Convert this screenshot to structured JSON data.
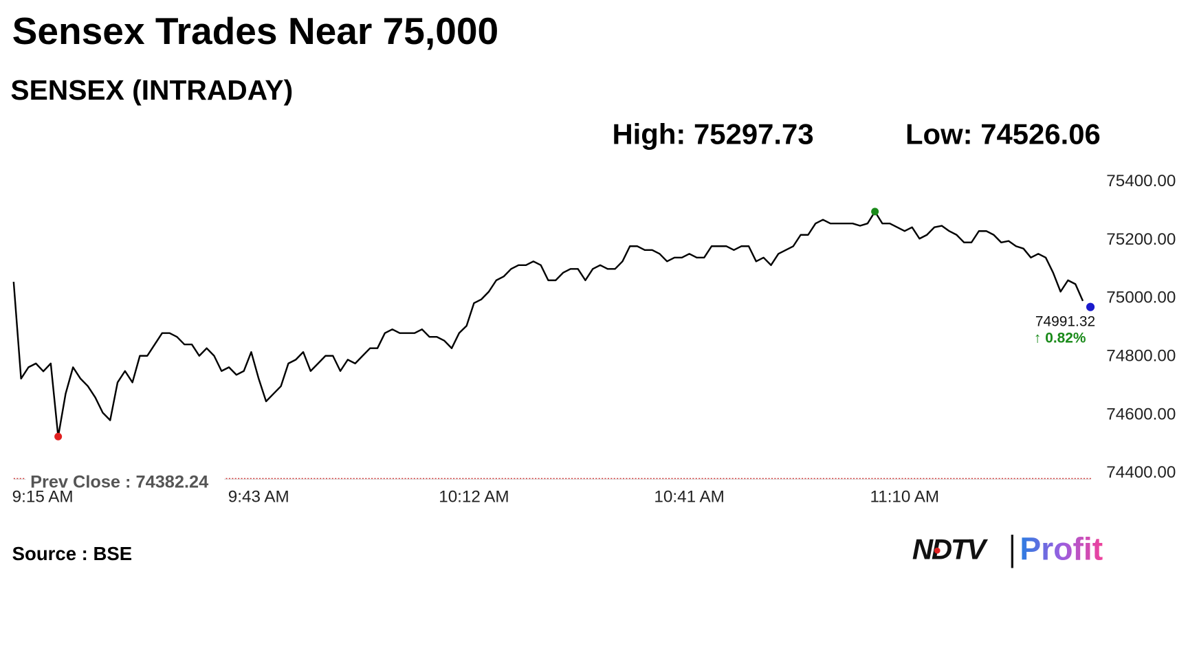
{
  "chart_data": {
    "type": "line",
    "title": "Sensex Trades Near 75,000",
    "subtitle": "SENSEX (INTRADAY)",
    "high_label": "High: 75297.73",
    "low_label": "Low: 74526.06",
    "categories": [
      "9:15 AM",
      null,
      null,
      null,
      null,
      null,
      null,
      null,
      null,
      null,
      null,
      null,
      null,
      null,
      null,
      null,
      null,
      null,
      null,
      null,
      null,
      null,
      null,
      null,
      null,
      null,
      null,
      null,
      null,
      null,
      null,
      null,
      null,
      "9:43 AM",
      null,
      null,
      null,
      null,
      null,
      null,
      null,
      null,
      null,
      null,
      null,
      null,
      null,
      null,
      null,
      null,
      null,
      null,
      null,
      null,
      null,
      null,
      null,
      null,
      null,
      null,
      null,
      null,
      "10:12 AM",
      null,
      null,
      null,
      null,
      null,
      null,
      null,
      null,
      null,
      null,
      null,
      null,
      null,
      null,
      null,
      null,
      null,
      null,
      null,
      null,
      null,
      null,
      null,
      null,
      null,
      null,
      null,
      null,
      "10:41 AM",
      null,
      null,
      null,
      null,
      null,
      null,
      null,
      null,
      null,
      null,
      null,
      null,
      null,
      null,
      null,
      null,
      null,
      null,
      null,
      null,
      null,
      null,
      null,
      null,
      null,
      null,
      null,
      null,
      "11:10 AM",
      null,
      null,
      null,
      null,
      null,
      null,
      null,
      null,
      null,
      null,
      null,
      null,
      null,
      null,
      null,
      null,
      null,
      null,
      null,
      null,
      null,
      null,
      null,
      null
    ],
    "values": [
      75057,
      74725,
      74764,
      74777,
      74750,
      74777,
      74526.06,
      74673,
      74764,
      74725,
      74699,
      74660,
      74608,
      74582,
      74712,
      74751,
      74712,
      74803,
      74803,
      74842,
      74881,
      74881,
      74868,
      74842,
      74842,
      74803,
      74829,
      74803,
      74751,
      74764,
      74738,
      74751,
      74816,
      74725,
      74647,
      74673,
      74699,
      74777,
      74790,
      74816,
      74751,
      74777,
      74803,
      74803,
      74751,
      74790,
      74777,
      74803,
      74829,
      74829,
      74881,
      74894,
      74881,
      74881,
      74881,
      74894,
      74868,
      74868,
      74855,
      74829,
      74881,
      74906,
      74984,
      74997,
      75023,
      75062,
      75075,
      75101,
      75114,
      75114,
      75127,
      75114,
      75062,
      75062,
      75088,
      75101,
      75101,
      75062,
      75101,
      75114,
      75101,
      75101,
      75127,
      75179,
      75179,
      75166,
      75166,
      75153,
      75127,
      75140,
      75140,
      75153,
      75140,
      75140,
      75179,
      75179,
      75179,
      75166,
      75179,
      75179,
      75127,
      75140,
      75114,
      75153,
      75166,
      75179,
      75218,
      75218,
      75257,
      75270,
      75257,
      75257,
      75257,
      75257,
      75249,
      75257,
      75297.73,
      75257,
      75257,
      75244,
      75231,
      75244,
      75205,
      75218,
      75244,
      75249,
      75231,
      75218,
      75192,
      75192,
      75231,
      75231,
      75218,
      75192,
      75197,
      75179,
      75171,
      75140,
      75153,
      75140,
      75088,
      75023,
      75062,
      75049,
      74991.32
    ],
    "color": "#000000",
    "high_color": "#1a8a1a",
    "low_color": "#e02020",
    "last_color": "#1a1acc",
    "last_label": "74991.32",
    "change_label": "↑ 0.82%",
    "change_color": "#1a8a1a",
    "reference_line": {
      "value": 74382.24,
      "label": "Prev Close : 74382.24",
      "color": "#d04040"
    },
    "ylim": [
      74360,
      75440
    ],
    "yticks": [
      {
        "value": 74400,
        "label": "74400.00"
      },
      {
        "value": 74600,
        "label": "74600.00"
      },
      {
        "value": 74800,
        "label": "74800.00"
      },
      {
        "value": 75000,
        "label": "75000.00"
      },
      {
        "value": 75200,
        "label": "75200.00"
      },
      {
        "value": 75400,
        "label": "75400.00"
      }
    ],
    "grid": false,
    "source": "Source : BSE"
  },
  "logo": {
    "left": "NDTV",
    "right": "Profit"
  }
}
